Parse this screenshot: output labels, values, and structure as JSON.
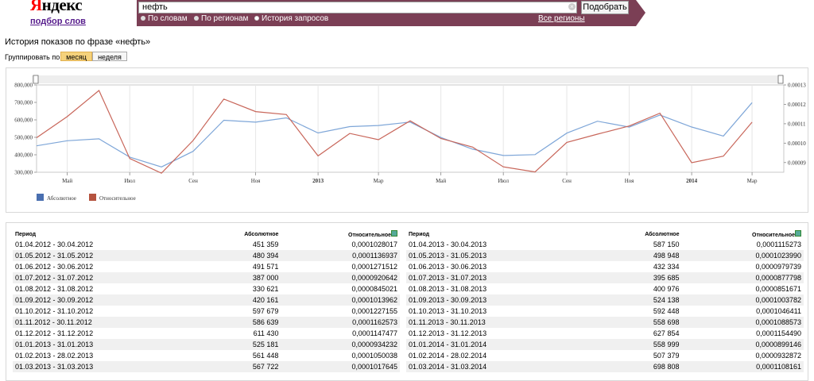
{
  "header": {
    "logo": "Яндекс",
    "subtitle": "подбор слов",
    "search_value": "нефть",
    "search_button": "Подобрать",
    "radio_options": [
      {
        "label": "По словам",
        "selected": false
      },
      {
        "label": "По регионам",
        "selected": false
      },
      {
        "label": "История запросов",
        "selected": true
      }
    ],
    "regions_link": "Все регионы",
    "bar_color": "#7b3f55"
  },
  "page": {
    "heading": "История показов по фразе «нефть»",
    "group_label": "Группировать по:",
    "group_month": "месяц",
    "group_week": "неделя"
  },
  "chart_data": {
    "type": "line",
    "x": [
      "01.04.2012",
      "01.05.2012",
      "01.06.2012",
      "01.07.2012",
      "01.08.2012",
      "01.09.2012",
      "01.10.2012",
      "01.11.2012",
      "01.12.2012",
      "01.01.2013",
      "01.02.2013",
      "01.03.2013",
      "01.04.2013",
      "01.05.2013",
      "01.06.2013",
      "01.07.2013",
      "01.08.2013",
      "01.09.2013",
      "01.10.2013",
      "01.11.2013",
      "01.12.2013",
      "01.01.2014",
      "01.02.2014",
      "01.03.2014",
      "01.04.2014"
    ],
    "series": [
      {
        "name": "Абсолютное",
        "axis": "left",
        "color": "#7ea6d8",
        "values": [
          451359,
          480394,
          491571,
          387000,
          330621,
          420161,
          597679,
          586639,
          611430,
          525181,
          561448,
          567722,
          587150,
          498948,
          432334,
          395685,
          400976,
          524138,
          592448,
          558698,
          627854,
          558999,
          507379,
          698808,
          null
        ]
      },
      {
        "name": "Относительное",
        "axis": "right",
        "color": "#c8665a",
        "values": [
          0.0001028017,
          0.0001136937,
          0.0001271512,
          9.20642e-05,
          8.45021e-05,
          0.0001013962,
          0.0001227155,
          0.0001162573,
          0.0001147477,
          9.34232e-05,
          0.0001050038,
          0.0001017645,
          0.0001115273,
          0.000102399,
          9.79739e-05,
          8.77798e-05,
          8.51671e-05,
          0.0001003782,
          0.0001046411,
          0.0001088573,
          0.000115449,
          8.99146e-05,
          9.32872e-05,
          0.0001108161,
          null
        ]
      }
    ],
    "left_ticks": [
      "300,000",
      "400,000",
      "500,000",
      "600,000",
      "700,000",
      "800,000"
    ],
    "ylim_left": [
      300000,
      800000
    ],
    "right_ticks": [
      "0.00009",
      "0.00010",
      "0.00011",
      "0.00012",
      "0.00013"
    ],
    "ylim_right": [
      8.5e-05,
      0.00013
    ],
    "x_ticks": [
      {
        "label": "Май",
        "at": "01.05.2012",
        "bold": false
      },
      {
        "label": "Июл",
        "at": "01.07.2012",
        "bold": false
      },
      {
        "label": "Сен",
        "at": "01.09.2012",
        "bold": false
      },
      {
        "label": "Ноя",
        "at": "01.11.2012",
        "bold": false
      },
      {
        "label": "2013",
        "at": "01.01.2013",
        "bold": true
      },
      {
        "label": "Мар",
        "at": "01.03.2013",
        "bold": false
      },
      {
        "label": "Май",
        "at": "01.05.2013",
        "bold": false
      },
      {
        "label": "Июл",
        "at": "01.07.2013",
        "bold": false
      },
      {
        "label": "Сен",
        "at": "01.09.2013",
        "bold": false
      },
      {
        "label": "Ноя",
        "at": "01.11.2013",
        "bold": false
      },
      {
        "label": "2014",
        "at": "01.01.2014",
        "bold": true
      },
      {
        "label": "Мар",
        "at": "01.03.2014",
        "bold": false
      }
    ],
    "grid": true,
    "legend_placement": "bottom-left"
  },
  "table": {
    "columns": [
      "Период",
      "Абсолютное",
      "Относительное"
    ],
    "left_rows": [
      [
        "01.04.2012 - 30.04.2012",
        "451 359",
        "0,0001028017"
      ],
      [
        "01.05.2012 - 31.05.2012",
        "480 394",
        "0,0001136937"
      ],
      [
        "01.06.2012 - 30.06.2012",
        "491 571",
        "0,0001271512"
      ],
      [
        "01.07.2012 - 31.07.2012",
        "387 000",
        "0,0000920642"
      ],
      [
        "01.08.2012 - 31.08.2012",
        "330 621",
        "0,0000845021"
      ],
      [
        "01.09.2012 - 30.09.2012",
        "420 161",
        "0,0001013962"
      ],
      [
        "01.10.2012 - 31.10.2012",
        "597 679",
        "0,0001227155"
      ],
      [
        "01.11.2012 - 30.11.2012",
        "586 639",
        "0,0001162573"
      ],
      [
        "01.12.2012 - 31.12.2012",
        "611 430",
        "0,0001147477"
      ],
      [
        "01.01.2013 - 31.01.2013",
        "525 181",
        "0,0000934232"
      ],
      [
        "01.02.2013 - 28.02.2013",
        "561 448",
        "0,0001050038"
      ],
      [
        "01.03.2013 - 31.03.2013",
        "567 722",
        "0,0001017645"
      ]
    ],
    "right_rows": [
      [
        "01.04.2013 - 30.04.2013",
        "587 150",
        "0,0001115273"
      ],
      [
        "01.05.2013 - 31.05.2013",
        "498 948",
        "0,0001023990"
      ],
      [
        "01.06.2013 - 30.06.2013",
        "432 334",
        "0,0000979739"
      ],
      [
        "01.07.2013 - 31.07.2013",
        "395 685",
        "0,0000877798"
      ],
      [
        "01.08.2013 - 31.08.2013",
        "400 976",
        "0,0000851671"
      ],
      [
        "01.09.2013 - 30.09.2013",
        "524 138",
        "0,0001003782"
      ],
      [
        "01.10.2013 - 31.10.2013",
        "592 448",
        "0,0001046411"
      ],
      [
        "01.11.2013 - 30.11.2013",
        "558 698",
        "0,0001088573"
      ],
      [
        "01.12.2013 - 31.12.2013",
        "627 854",
        "0,0001154490"
      ],
      [
        "01.01.2014 - 31.01.2014",
        "558 999",
        "0,0000899146"
      ],
      [
        "01.02.2014 - 28.02.2014",
        "507 379",
        "0,0000932872"
      ],
      [
        "01.03.2014 - 31.03.2014",
        "698 808",
        "0,0001108161"
      ]
    ]
  }
}
